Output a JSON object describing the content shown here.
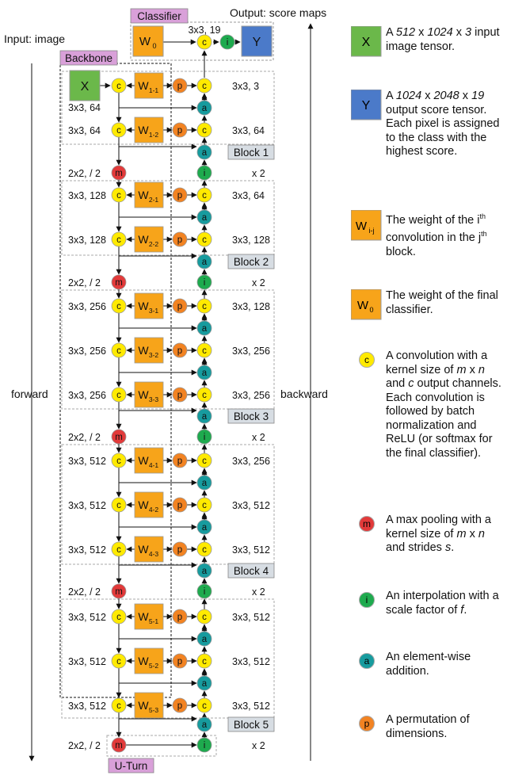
{
  "colors": {
    "conv": "#ffea00",
    "pool": "#e23a3a",
    "interp": "#1eaa4e",
    "add": "#179b9e",
    "perm": "#f28322",
    "weight": "#f7a41a",
    "input": "#6bb84a",
    "output": "#4b7ac9",
    "tag": "#d9a0d9",
    "block_tag": "#d7dde3"
  },
  "labels": {
    "input": "Input: image",
    "output": "Output: score maps",
    "classifier": "Classifier",
    "backbone": "Backbone",
    "uturn": "U-Turn",
    "forward": "forward",
    "backward": "backward",
    "x": "X",
    "y": "Y",
    "w0": "W",
    "w0_sub": "0",
    "c": "c",
    "m": "m",
    "i": "i",
    "a": "a",
    "p": "p",
    "classifier_spec": "3x3, 19"
  },
  "blocks": [
    {
      "name": "Block 1",
      "pool": "2x2, / 2",
      "interp": "x 2",
      "convs": [
        {
          "w": "W",
          "sub": "1-1",
          "fwd": "3x3, 64",
          "bwd": "3x3, 3"
        },
        {
          "w": "W",
          "sub": "1-2",
          "fwd": "3x3, 64",
          "bwd": "3x3, 64"
        }
      ]
    },
    {
      "name": "Block 2",
      "pool": "2x2, / 2",
      "interp": "x 2",
      "convs": [
        {
          "w": "W",
          "sub": "2-1",
          "fwd": "3x3, 128",
          "bwd": "3x3, 64"
        },
        {
          "w": "W",
          "sub": "2-2",
          "fwd": "3x3, 128",
          "bwd": "3x3, 128"
        }
      ]
    },
    {
      "name": "Block 3",
      "pool": "2x2, / 2",
      "interp": "x 2",
      "convs": [
        {
          "w": "W",
          "sub": "3-1",
          "fwd": "3x3, 256",
          "bwd": "3x3, 128"
        },
        {
          "w": "W",
          "sub": "3-2",
          "fwd": "3x3, 256",
          "bwd": "3x3, 256"
        },
        {
          "w": "W",
          "sub": "3-3",
          "fwd": "3x3, 256",
          "bwd": "3x3, 256"
        }
      ]
    },
    {
      "name": "Block 4",
      "pool": "2x2, / 2",
      "interp": "x 2",
      "convs": [
        {
          "w": "W",
          "sub": "4-1",
          "fwd": "3x3, 512",
          "bwd": "3x3, 256"
        },
        {
          "w": "W",
          "sub": "4-2",
          "fwd": "3x3, 512",
          "bwd": "3x3, 512"
        },
        {
          "w": "W",
          "sub": "4-3",
          "fwd": "3x3, 512",
          "bwd": "3x3, 512"
        }
      ]
    },
    {
      "name": "Block 5",
      "pool": "2x2, / 2",
      "interp": "x 2",
      "convs": [
        {
          "w": "W",
          "sub": "5-1",
          "fwd": "3x3, 512",
          "bwd": "3x3, 512"
        },
        {
          "w": "W",
          "sub": "5-2",
          "fwd": "3x3, 512",
          "bwd": "3x3, 512"
        },
        {
          "w": "W",
          "sub": "5-3",
          "fwd": "3x3, 512",
          "bwd": "3x3, 512"
        }
      ]
    }
  ],
  "legend": {
    "x_glyph": "X",
    "x_text": [
      "A ",
      "512",
      " x ",
      "1024",
      " x ",
      "3",
      " input image tensor."
    ],
    "y_glyph": "Y",
    "y_text": [
      "A ",
      "1024",
      " x ",
      "2048",
      " x ",
      "19",
      " output score tensor. Each pixel is assigned to the class with the highest score."
    ],
    "wij_glyph": "W",
    "wij_sub": "i-j",
    "wij_text": [
      "The weight of the i",
      "th",
      " convolution in the j",
      "th",
      " block."
    ],
    "w0_glyph": "W",
    "w0_sub": "0",
    "w0_text": "The weight of the final classifier.",
    "c_glyph": "c",
    "c_text": [
      "A convolution with a kernel size of ",
      "m",
      " x ",
      "n",
      " and ",
      "c",
      " output channels. Each convolution is followed by batch normalization and ReLU (or softmax for the final classifier)."
    ],
    "m_glyph": "m",
    "m_text": [
      "A max pooling with a kernel size of ",
      "m",
      " x ",
      "n",
      " and strides ",
      "s",
      "."
    ],
    "i_glyph": "i",
    "i_text": [
      "An interpolation with a scale factor of ",
      "f",
      "."
    ],
    "a_glyph": "a",
    "a_text": "An element-wise addition.",
    "p_glyph": "p",
    "p_text": "A permutation of dimensions."
  }
}
